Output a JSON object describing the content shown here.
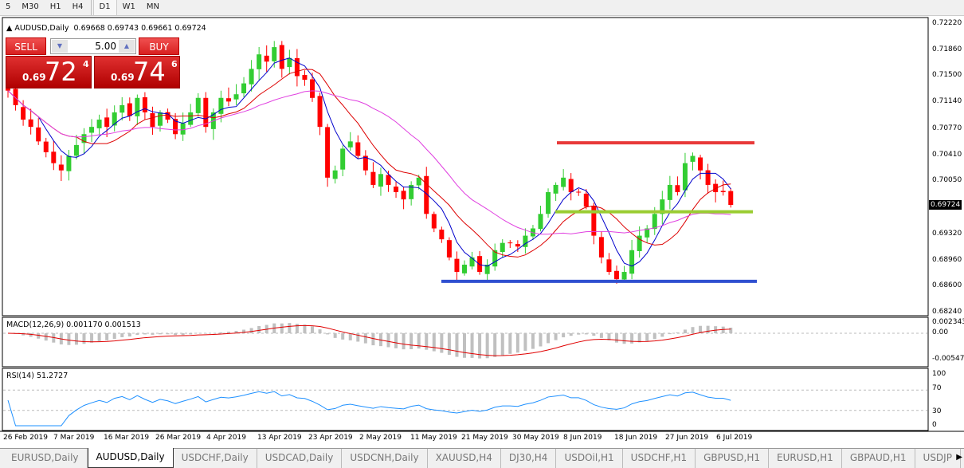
{
  "toolbar": {
    "timeframes": [
      "5",
      "M30",
      "H1",
      "H4",
      "D1",
      "W1",
      "MN"
    ],
    "active": "D1"
  },
  "chart_header": {
    "symbol": "AUDUSD,Daily",
    "ohlc": "0.69668 0.69743 0.69661 0.69724"
  },
  "trade_panel": {
    "sell_label": "SELL",
    "buy_label": "BUY",
    "quantity": "5.00",
    "sell_prefix": "0.69",
    "sell_big": "72",
    "sell_sup": "4",
    "buy_prefix": "0.69",
    "buy_big": "74",
    "buy_sup": "6"
  },
  "price_axis": [
    "0.72220",
    "0.71860",
    "0.71500",
    "0.71140",
    "0.70770",
    "0.70410",
    "0.70050",
    "0.69320",
    "0.68960",
    "0.68600",
    "0.68240"
  ],
  "current_price": "0.69724",
  "macd": {
    "label": "MACD(12,26,9) 0.001170 0.001513",
    "axis": [
      "0.002343",
      "0.00",
      "-0.005473"
    ]
  },
  "rsi": {
    "label": "RSI(14) 51.2727",
    "axis": [
      "100",
      "70",
      "30",
      "0"
    ]
  },
  "dates": [
    "26 Feb 2019",
    "7 Mar 2019",
    "16 Mar 2019",
    "26 Mar 2019",
    "4 Apr 2019",
    "13 Apr 2019",
    "23 Apr 2019",
    "2 May 2019",
    "11 May 2019",
    "21 May 2019",
    "30 May 2019",
    "8 Jun 2019",
    "18 Jun 2019",
    "27 Jun 2019",
    "6 Jul 2019"
  ],
  "tabs": [
    "EURUSD,Daily",
    "AUDUSD,Daily",
    "USDCHF,Daily",
    "USDCAD,Daily",
    "USDCNH,Daily",
    "XAUUSD,H4",
    "DJ30,H4",
    "USDOil,H1",
    "USDCHF,H1",
    "GBPUSD,H1",
    "EURUSD,H1",
    "GBPAUD,H1",
    "USDJP"
  ],
  "active_tab": "AUDUSD,Daily",
  "colors": {
    "bull": "#32cd32",
    "bear": "#ff0000",
    "resistance": "#e83a3a",
    "neckline": "#9acd32",
    "support": "#3050d0",
    "ma_fast": "#0000cc",
    "ma_mid": "#dd0000",
    "ma_slow": "#e040e0",
    "rsi": "#1e90ff"
  },
  "chart_data": {
    "type": "candlestick",
    "closes": [
      0.713,
      0.711,
      0.709,
      0.708,
      0.706,
      0.7045,
      0.703,
      0.702,
      0.704,
      0.7055,
      0.707,
      0.708,
      0.709,
      0.708,
      0.71,
      0.711,
      0.7095,
      0.712,
      0.71,
      0.708,
      0.71,
      0.709,
      0.707,
      0.7085,
      0.71,
      0.712,
      0.708,
      0.71,
      0.712,
      0.7115,
      0.7125,
      0.714,
      0.716,
      0.718,
      0.717,
      0.719,
      0.716,
      0.7175,
      0.715,
      0.7145,
      0.712,
      0.708,
      0.701,
      0.702,
      0.705,
      0.706,
      0.704,
      0.702,
      0.7,
      0.7015,
      0.7,
      0.699,
      0.698,
      0.7,
      0.701,
      0.696,
      0.694,
      0.6925,
      0.69,
      0.688,
      0.689,
      0.69,
      0.688,
      0.689,
      0.691,
      0.692,
      0.692,
      0.6915,
      0.693,
      0.694,
      0.696,
      0.699,
      0.7,
      0.701,
      0.699,
      0.699,
      0.697,
      0.693,
      0.69,
      0.688,
      0.687,
      0.688,
      0.691,
      0.693,
      0.694,
      0.696,
      0.698,
      0.7,
      0.699,
      0.703,
      0.704,
      0.702,
      0.7,
      0.699,
      0.699,
      0.69724
    ],
    "levels": {
      "resistance": 0.7058,
      "neckline": 0.6963,
      "support": 0.6867
    },
    "ylim": [
      0.6824,
      0.7222
    ]
  }
}
